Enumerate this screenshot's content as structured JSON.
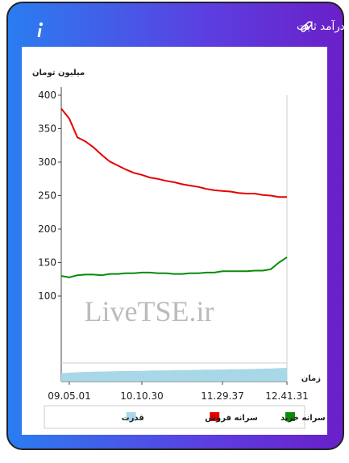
{
  "header": {
    "title": "سرانه ی خرید و فروش حقیقی در صندوق های درآمد ثابت"
  },
  "chart_data": {
    "type": "line",
    "y_label": "میلیون تومان",
    "x_label": "زمان",
    "watermark": "LiveTSE.ir",
    "categories": [
      null,
      "09.05.01",
      null,
      null,
      null,
      null,
      null,
      null,
      null,
      null,
      "10.10.30",
      null,
      null,
      null,
      null,
      null,
      null,
      null,
      null,
      null,
      "11.29.37",
      null,
      null,
      null,
      null,
      null,
      null,
      null,
      "12.41.31"
    ],
    "ylim": [
      0,
      400
    ],
    "yticks": [
      100,
      150,
      200,
      250,
      300,
      350,
      400
    ],
    "y2lim": [
      0,
      100
    ],
    "series": [
      {
        "name": "سرانه خرید",
        "color": "#0a8a0a",
        "values": [
          130,
          128,
          131,
          132,
          132,
          131,
          133,
          133,
          134,
          134,
          135,
          135,
          134,
          134,
          133,
          133,
          134,
          134,
          135,
          135,
          137,
          137,
          137,
          137,
          138,
          138,
          140,
          150,
          158
        ]
      },
      {
        "name": "سرانه فروش",
        "color": "#e60000",
        "values": [
          380,
          365,
          337,
          331,
          322,
          311,
          301,
          295,
          289,
          284,
          281,
          277,
          275,
          272,
          270,
          267,
          265,
          263,
          260,
          258,
          257,
          256,
          254,
          253,
          253,
          251,
          250,
          248,
          248
        ]
      },
      {
        "name": "قدرت",
        "color": "#a8d8e8",
        "axis": "y2",
        "values": [
          45,
          48,
          50,
          52,
          53,
          54,
          55,
          56,
          57,
          58,
          58,
          59,
          60,
          60,
          61,
          62,
          62,
          63,
          64,
          64,
          65,
          66,
          66,
          67,
          68,
          69,
          70,
          72,
          74
        ]
      }
    ]
  }
}
